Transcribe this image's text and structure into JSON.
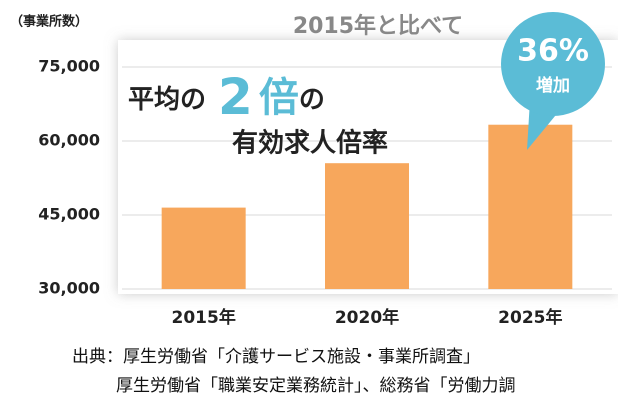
{
  "chart_data": {
    "type": "bar",
    "ylabel": "（事業所数）",
    "categories": [
      "2015年",
      "2020年",
      "2025年"
    ],
    "values": [
      46500,
      55500,
      63300
    ],
    "color": "#f7a75c",
    "ylim": [
      30000,
      75000
    ],
    "yticks": [
      {
        "value": 30000,
        "label": "30,000"
      },
      {
        "value": 45000,
        "label": "45,000"
      },
      {
        "value": 60000,
        "label": "60,000"
      },
      {
        "value": 75000,
        "label": "75,000"
      }
    ],
    "grid": true,
    "annotations": {
      "compare": "2015年と比べて",
      "percent": "36%",
      "increase": "増加",
      "headline_1": "平均の",
      "headline_2": "2",
      "headline_3": "倍",
      "headline_4": "の",
      "headline_5": "有効求人倍率"
    },
    "source": [
      "出典：厚生労働省「介護サービス施設・事業所調査」",
      "厚生労働省「職業安定業務統計」、総務省「労働力調"
    ]
  }
}
